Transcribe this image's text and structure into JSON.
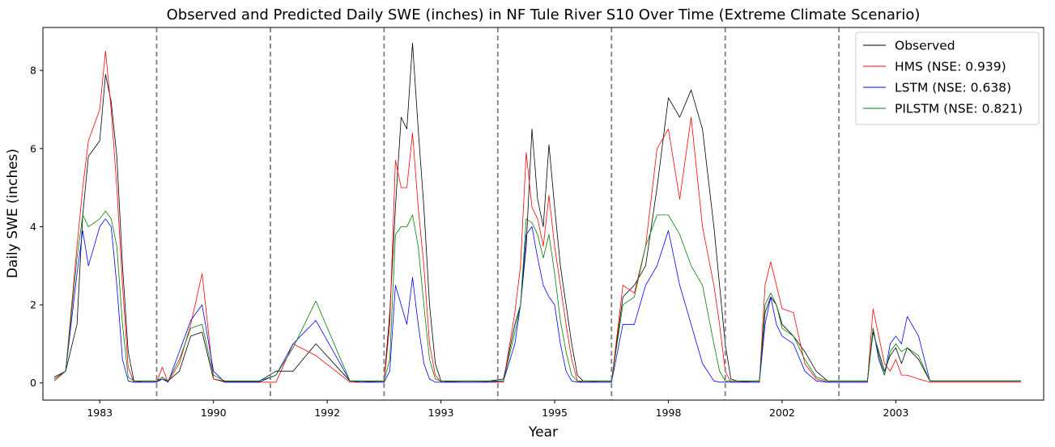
{
  "chart_data": {
    "type": "line",
    "title": "Observed and Predicted Daily SWE (inches) in NF Tule River S10 Over Time (Extreme Climate Scenario)",
    "xlabel": "Year",
    "ylabel": "Daily SWE (inches)",
    "x_tick_labels": [
      "1983",
      "1990",
      "1992",
      "1993",
      "1995",
      "1998",
      "2002",
      "2003"
    ],
    "y_ticks": [
      0,
      2,
      4,
      6,
      8
    ],
    "ylim": [
      -0.44,
      9.1
    ],
    "xlim": [
      0,
      8.8
    ],
    "grid": false,
    "legend_position": "top-right",
    "segment_separators": [
      1,
      2,
      3,
      4,
      5,
      6,
      7
    ],
    "x": [
      0.1,
      0.2,
      0.3,
      0.35,
      0.4,
      0.5,
      0.55,
      0.6,
      0.65,
      0.7,
      0.75,
      0.8,
      0.85,
      0.9,
      0.95,
      1.0,
      1.05,
      1.1,
      1.2,
      1.3,
      1.4,
      1.5,
      1.6,
      1.7,
      1.8,
      1.9,
      2.05,
      2.2,
      2.4,
      2.7,
      2.8,
      2.85,
      2.9,
      3.0,
      3.05,
      3.1,
      3.15,
      3.2,
      3.25,
      3.3,
      3.35,
      3.4,
      3.45,
      3.5,
      3.55,
      3.6,
      3.7,
      3.8,
      3.9,
      4.05,
      4.15,
      4.2,
      4.25,
      4.3,
      4.35,
      4.4,
      4.45,
      4.5,
      4.55,
      4.6,
      4.65,
      4.7,
      4.75,
      4.8,
      4.85,
      4.9,
      5.0,
      5.1,
      5.2,
      5.3,
      5.4,
      5.5,
      5.6,
      5.7,
      5.8,
      5.9,
      5.95,
      6.0,
      6.05,
      6.1,
      6.15,
      6.2,
      6.25,
      6.3,
      6.35,
      6.4,
      6.45,
      6.5,
      6.6,
      6.7,
      6.8,
      6.9,
      7.05,
      7.1,
      7.2,
      7.25,
      7.3,
      7.35,
      7.4,
      7.45,
      7.5,
      7.55,
      7.6,
      7.7,
      7.8,
      7.9,
      8.0,
      8.1,
      8.2,
      8.3,
      8.4,
      8.5,
      8.6
    ],
    "series": [
      {
        "name": "Observed",
        "color": "#000000",
        "values": [
          0.15,
          0.3,
          1.5,
          4.3,
          5.8,
          6.2,
          7.9,
          7.2,
          5.8,
          3.0,
          0.8,
          0.05,
          0.04,
          0.05,
          0.05,
          0.05,
          0.1,
          0.05,
          0.3,
          1.2,
          1.3,
          0.1,
          0.04,
          0.04,
          0.04,
          0.04,
          0.3,
          0.3,
          1.0,
          0.05,
          0.05,
          0.04,
          0.04,
          0.05,
          1.8,
          4.5,
          6.8,
          6.5,
          8.7,
          6.5,
          4.5,
          2.0,
          0.5,
          0.05,
          0.04,
          0.04,
          0.05,
          0.05,
          0.04,
          0.1,
          1.5,
          2.0,
          3.5,
          6.5,
          4.7,
          4.0,
          6.1,
          4.5,
          3.0,
          2.0,
          1.0,
          0.2,
          0.05,
          0.05,
          0.04,
          0.05,
          0.05,
          2.2,
          2.5,
          3.0,
          5.0,
          7.3,
          6.8,
          7.5,
          6.5,
          4.0,
          2.5,
          1.0,
          0.1,
          0.05,
          0.04,
          0.04,
          0.05,
          0.05,
          1.8,
          2.2,
          2.0,
          1.5,
          1.2,
          0.8,
          0.3,
          0.05,
          0.05,
          0.05,
          0.05,
          0.05,
          1.3,
          0.8,
          0.3,
          0.7,
          0.9,
          0.5,
          0.9,
          0.6,
          0.05,
          0.05,
          0.05,
          0.05,
          0.05,
          0.05,
          0.05,
          0.05,
          0.05
        ]
      },
      {
        "name": "HMS (NSE: 0.939)",
        "color": "#ff0000",
        "values": [
          0.05,
          0.3,
          3.5,
          5.0,
          6.2,
          7.0,
          8.5,
          7.0,
          5.0,
          2.5,
          0.4,
          0.02,
          0.02,
          0.02,
          0.02,
          0.02,
          0.4,
          0.02,
          0.5,
          1.5,
          2.8,
          0.1,
          0.02,
          0.02,
          0.02,
          0.02,
          0.02,
          1.0,
          0.7,
          0.02,
          0.02,
          0.02,
          0.02,
          0.02,
          1.5,
          5.7,
          5.0,
          5.0,
          6.4,
          4.5,
          3.0,
          1.0,
          0.2,
          0.02,
          0.02,
          0.02,
          0.02,
          0.02,
          0.02,
          0.02,
          1.8,
          3.0,
          5.9,
          4.5,
          4.2,
          3.5,
          4.8,
          3.5,
          2.5,
          1.5,
          0.6,
          0.05,
          0.02,
          0.02,
          0.02,
          0.02,
          0.02,
          2.5,
          2.3,
          3.5,
          6.0,
          6.5,
          4.7,
          6.8,
          4.0,
          2.5,
          1.5,
          0.3,
          0.02,
          0.02,
          0.02,
          0.02,
          0.02,
          0.02,
          2.5,
          3.1,
          2.5,
          1.9,
          1.8,
          0.5,
          0.1,
          0.02,
          0.02,
          0.02,
          0.02,
          0.02,
          1.9,
          1.2,
          0.5,
          0.3,
          0.6,
          0.2,
          0.2,
          0.1,
          0.02,
          0.02,
          0.02,
          0.02,
          0.02,
          0.02,
          0.02,
          0.02,
          0.02
        ]
      },
      {
        "name": "LSTM (NSE: 0.638)",
        "color": "#0000ff",
        "values": [
          0.1,
          0.3,
          2.8,
          3.9,
          3.0,
          4.0,
          4.2,
          4.0,
          2.5,
          0.6,
          0.05,
          0.02,
          0.02,
          0.02,
          0.02,
          0.02,
          0.1,
          0.02,
          0.8,
          1.6,
          2.0,
          0.3,
          0.02,
          0.02,
          0.02,
          0.02,
          0.2,
          1.0,
          1.6,
          0.05,
          0.02,
          0.02,
          0.02,
          0.02,
          0.3,
          2.5,
          2.0,
          1.5,
          2.7,
          1.5,
          0.5,
          0.1,
          0.02,
          0.02,
          0.02,
          0.02,
          0.02,
          0.02,
          0.02,
          0.05,
          1.0,
          2.0,
          3.8,
          4.0,
          3.2,
          2.5,
          2.2,
          2.0,
          1.0,
          0.3,
          0.05,
          0.02,
          0.02,
          0.02,
          0.02,
          0.02,
          0.02,
          1.5,
          1.5,
          2.5,
          3.0,
          3.9,
          2.5,
          1.5,
          0.5,
          0.05,
          0.02,
          0.02,
          0.02,
          0.02,
          0.02,
          0.02,
          0.02,
          0.02,
          1.5,
          2.2,
          1.5,
          1.2,
          1.0,
          0.3,
          0.05,
          0.02,
          0.02,
          0.02,
          0.02,
          0.02,
          1.4,
          0.6,
          0.2,
          1.0,
          1.2,
          1.0,
          1.7,
          1.2,
          0.05,
          0.05,
          0.05,
          0.05,
          0.05,
          0.05,
          0.05,
          0.05,
          0.05
        ]
      },
      {
        "name": "PILSTM (NSE: 0.821)",
        "color": "#008000",
        "values": [
          0.1,
          0.3,
          3.2,
          4.3,
          4.0,
          4.2,
          4.4,
          4.2,
          3.5,
          1.5,
          0.15,
          0.05,
          0.05,
          0.05,
          0.05,
          0.05,
          0.15,
          0.05,
          0.6,
          1.4,
          1.5,
          0.2,
          0.05,
          0.05,
          0.05,
          0.05,
          0.2,
          0.9,
          2.1,
          0.05,
          0.05,
          0.05,
          0.05,
          0.05,
          0.6,
          3.8,
          4.0,
          4.0,
          4.3,
          3.5,
          2.0,
          0.6,
          0.1,
          0.05,
          0.05,
          0.05,
          0.05,
          0.05,
          0.05,
          0.05,
          1.3,
          2.0,
          4.2,
          4.1,
          3.8,
          3.2,
          3.8,
          2.8,
          1.6,
          0.8,
          0.2,
          0.05,
          0.05,
          0.05,
          0.05,
          0.05,
          0.05,
          2.0,
          2.2,
          3.5,
          4.3,
          4.3,
          3.8,
          3.0,
          2.5,
          1.0,
          0.3,
          0.05,
          0.05,
          0.05,
          0.05,
          0.05,
          0.05,
          0.05,
          2.0,
          2.3,
          2.0,
          1.4,
          1.2,
          0.6,
          0.15,
          0.05,
          0.05,
          0.05,
          0.05,
          0.05,
          1.4,
          0.7,
          0.2,
          0.8,
          1.0,
          0.8,
          0.9,
          0.7,
          0.05,
          0.05,
          0.05,
          0.05,
          0.05,
          0.05,
          0.05,
          0.05,
          0.05
        ]
      }
    ]
  }
}
